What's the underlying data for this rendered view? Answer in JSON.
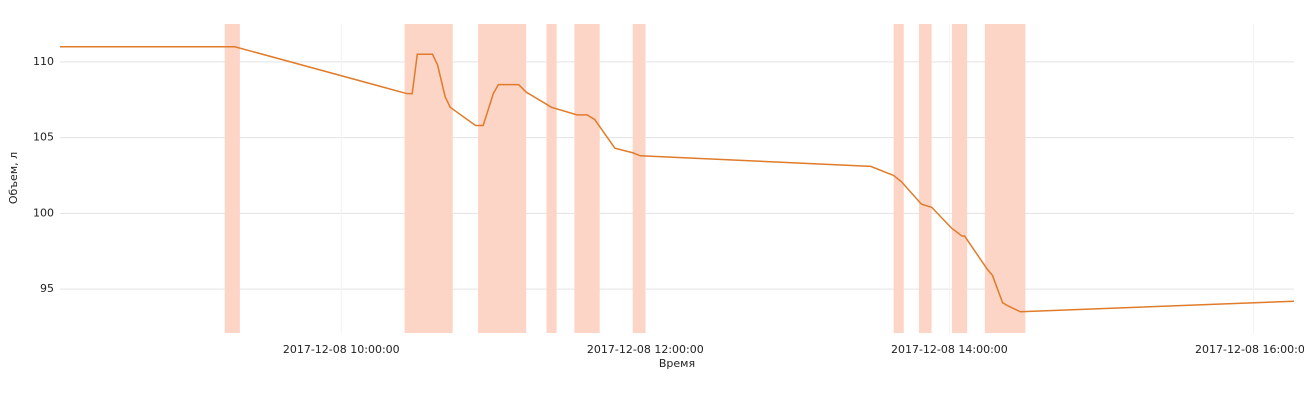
{
  "chart_data": {
    "type": "line",
    "x_label": "Время",
    "y_label": "Объем, л",
    "x": [
      "2017-12-08 08:09:00",
      "2017-12-08 09:18:00",
      "2017-12-08 10:26:00",
      "2017-12-08 10:28:00",
      "2017-12-08 10:30:00",
      "2017-12-08 10:36:00",
      "2017-12-08 10:38:00",
      "2017-12-08 10:41:00",
      "2017-12-08 10:43:00",
      "2017-12-08 10:53:00",
      "2017-12-08 10:56:00",
      "2017-12-08 11:00:00",
      "2017-12-08 11:02:00",
      "2017-12-08 11:10:00",
      "2017-12-08 11:13:00",
      "2017-12-08 11:23:00",
      "2017-12-08 11:33:00",
      "2017-12-08 11:37:00",
      "2017-12-08 11:40:00",
      "2017-12-08 11:48:00",
      "2017-12-08 11:55:00",
      "2017-12-08 11:58:00",
      "2017-12-08 13:29:00",
      "2017-12-08 13:38:00",
      "2017-12-08 13:41:00",
      "2017-12-08 13:49:00",
      "2017-12-08 13:53:00",
      "2017-12-08 14:01:00",
      "2017-12-08 14:05:00",
      "2017-12-08 14:06:00",
      "2017-12-08 14:15:00",
      "2017-12-08 14:17:00",
      "2017-12-08 14:21:00",
      "2017-12-08 14:23:00",
      "2017-12-08 14:28:00",
      "2017-12-08 16:16:00"
    ],
    "series": [
      {
        "color": "#e07b2a",
        "values": [
          111.0,
          111.0,
          107.9,
          107.9,
          110.5,
          110.5,
          109.8,
          107.7,
          107.0,
          105.8,
          105.8,
          107.9,
          108.5,
          108.5,
          108.0,
          107.0,
          106.5,
          106.5,
          106.2,
          104.3,
          104.0,
          103.8,
          103.1,
          102.5,
          102.1,
          100.6,
          100.4,
          99.0,
          98.5,
          98.5,
          96.3,
          95.9,
          94.1,
          93.9,
          93.5,
          94.2
        ]
      }
    ],
    "bands": {
      "color": "#fdd5c6",
      "spans": [
        {
          "start": "2017-12-08 09:14:00",
          "end": "2017-12-08 09:20:00"
        },
        {
          "start": "2017-12-08 10:25:00",
          "end": "2017-12-08 10:44:00"
        },
        {
          "start": "2017-12-08 10:54:00",
          "end": "2017-12-08 11:13:00"
        },
        {
          "start": "2017-12-08 11:21:00",
          "end": "2017-12-08 11:25:00"
        },
        {
          "start": "2017-12-08 11:32:00",
          "end": "2017-12-08 11:42:00"
        },
        {
          "start": "2017-12-08 11:55:00",
          "end": "2017-12-08 12:00:00"
        },
        {
          "start": "2017-12-08 13:38:00",
          "end": "2017-12-08 13:42:00"
        },
        {
          "start": "2017-12-08 13:48:00",
          "end": "2017-12-08 13:53:00"
        },
        {
          "start": "2017-12-08 14:01:00",
          "end": "2017-12-08 14:07:00"
        },
        {
          "start": "2017-12-08 14:14:00",
          "end": "2017-12-08 14:30:00"
        }
      ]
    },
    "xlim": [
      "2017-12-08 08:09:00",
      "2017-12-08 16:16:00"
    ],
    "xticks": [
      "2017-12-08 10:00:00",
      "2017-12-08 12:00:00",
      "2017-12-08 14:00:00",
      "2017-12-08 16:00:00"
    ],
    "ylim": [
      92.1,
      112.5
    ],
    "yticks": [
      95,
      100,
      105,
      110
    ],
    "grid": true
  }
}
